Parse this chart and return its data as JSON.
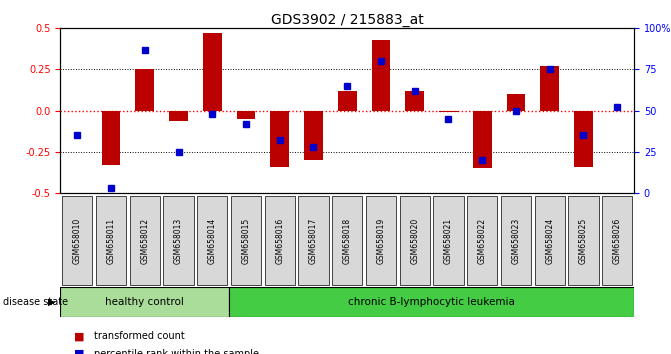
{
  "title": "GDS3902 / 215883_at",
  "samples": [
    "GSM658010",
    "GSM658011",
    "GSM658012",
    "GSM658013",
    "GSM658014",
    "GSM658015",
    "GSM658016",
    "GSM658017",
    "GSM658018",
    "GSM658019",
    "GSM658020",
    "GSM658021",
    "GSM658022",
    "GSM658023",
    "GSM658024",
    "GSM658025",
    "GSM658026"
  ],
  "transformed_count": [
    0.0,
    -0.33,
    0.25,
    -0.06,
    0.47,
    -0.05,
    -0.34,
    -0.3,
    0.12,
    0.43,
    0.12,
    -0.01,
    -0.35,
    0.1,
    0.27,
    -0.34,
    0.0
  ],
  "percentile_rank": [
    35,
    3,
    87,
    25,
    48,
    42,
    32,
    28,
    65,
    80,
    62,
    45,
    20,
    50,
    75,
    35,
    52
  ],
  "bar_color": "#bb0000",
  "dot_color": "#0000cc",
  "ylim_left": [
    -0.5,
    0.5
  ],
  "ylim_right": [
    0,
    100
  ],
  "yticks_left": [
    -0.5,
    -0.25,
    0.0,
    0.25,
    0.5
  ],
  "yticks_right": [
    0,
    25,
    50,
    75,
    100
  ],
  "healthy_control_count": 5,
  "disease_groups": [
    {
      "label": "healthy control",
      "color": "#aadd99",
      "start": 0,
      "end": 5
    },
    {
      "label": "chronic B-lymphocytic leukemia",
      "color": "#44cc44",
      "start": 5,
      "end": 17
    }
  ],
  "legend_items": [
    {
      "label": "transformed count",
      "color": "#bb0000"
    },
    {
      "label": "percentile rank within the sample",
      "color": "#0000cc"
    }
  ],
  "disease_state_label": "disease state",
  "background_color": "#ffffff"
}
